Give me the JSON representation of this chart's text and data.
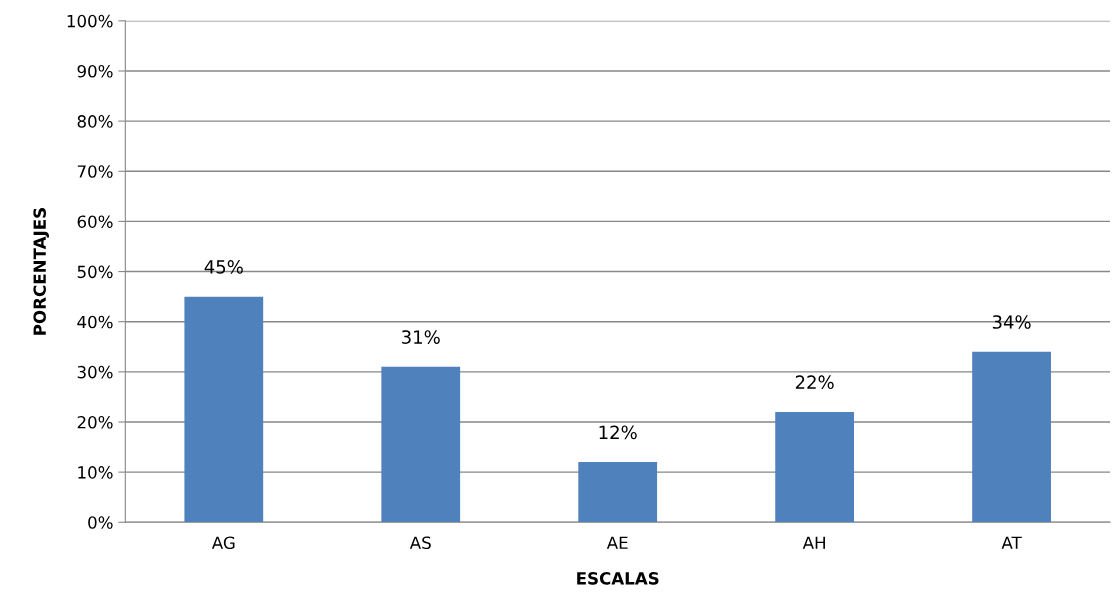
{
  "chart_data": {
    "type": "bar",
    "xlabel": "ESCALAS",
    "ylabel": "PORCENTAJES",
    "categories": [
      "AG",
      "AS",
      "AE",
      "AH",
      "AT"
    ],
    "values": [
      45,
      31,
      12,
      22,
      34
    ],
    "value_labels": [
      "45%",
      "31%",
      "12%",
      "22%",
      "34%"
    ],
    "color": "#4f81bd",
    "ylim": [
      0,
      100
    ],
    "yticks": [
      {
        "value": 0,
        "label": "0%"
      },
      {
        "value": 10,
        "label": "10%"
      },
      {
        "value": 20,
        "label": "20%"
      },
      {
        "value": 30,
        "label": "30%"
      },
      {
        "value": 40,
        "label": "40%"
      },
      {
        "value": 50,
        "label": "50%"
      },
      {
        "value": 60,
        "label": "60%"
      },
      {
        "value": 70,
        "label": "70%"
      },
      {
        "value": 80,
        "label": "80%"
      },
      {
        "value": 90,
        "label": "90%"
      },
      {
        "value": 100,
        "label": "100%"
      }
    ],
    "grid": "y"
  }
}
